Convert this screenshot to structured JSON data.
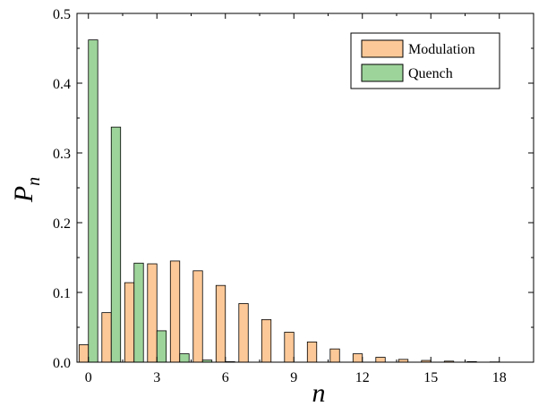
{
  "chart_data": {
    "type": "bar",
    "xlabel": "n",
    "ylabel_main": "P",
    "ylabel_sub": "n",
    "xlim": [
      -0.5,
      19.5
    ],
    "ylim": [
      0,
      0.5
    ],
    "x_ticks": [
      0,
      3,
      6,
      9,
      12,
      15,
      18
    ],
    "y_ticks": [
      0.0,
      0.1,
      0.2,
      0.3,
      0.4,
      0.5
    ],
    "y_tick_labels": [
      "0.0",
      "0.1",
      "0.2",
      "0.3",
      "0.4",
      "0.5"
    ],
    "legend_position": "top-right",
    "grid": false,
    "categories": [
      0,
      1,
      2,
      3,
      4,
      5,
      6,
      7,
      8,
      9,
      10,
      11,
      12,
      13,
      14,
      15,
      16,
      17,
      18,
      19
    ],
    "series": [
      {
        "name": "Modulation",
        "color": "#fdc897",
        "values": [
          0.025,
          0.071,
          0.114,
          0.141,
          0.145,
          0.131,
          0.11,
          0.084,
          0.061,
          0.043,
          0.029,
          0.019,
          0.012,
          0.007,
          0.004,
          0.0025,
          0.0015,
          0.0008,
          0.0004,
          0.0002
        ]
      },
      {
        "name": "Quench",
        "color": "#9dd49a",
        "values": [
          0.462,
          0.337,
          0.142,
          0.045,
          0.012,
          0.003,
          0.0007,
          0.0002,
          0.0001,
          0,
          0,
          0,
          0,
          0,
          0,
          0,
          0,
          0,
          0,
          0
        ]
      }
    ]
  }
}
